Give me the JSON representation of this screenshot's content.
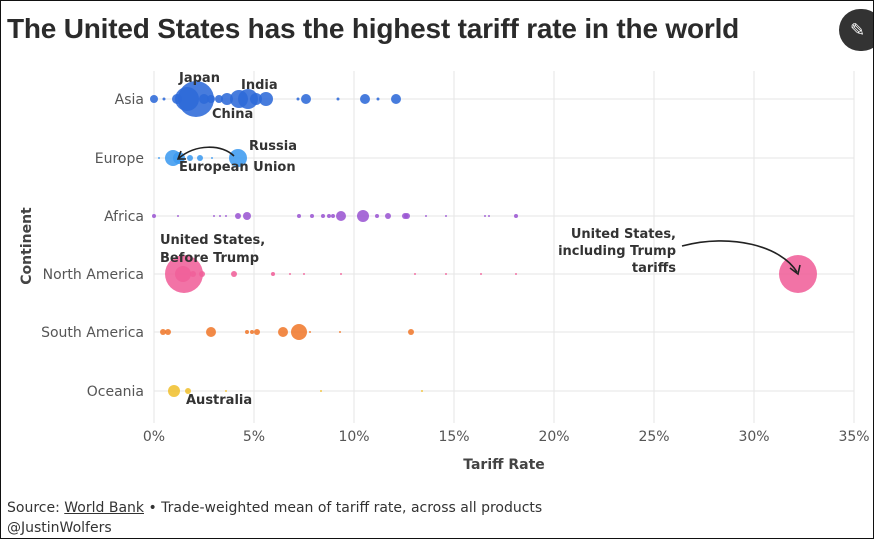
{
  "title": "The United States has the highest tariff rate in the world",
  "edit_icon": "pencil-icon",
  "footer": {
    "source_prefix": "Source:",
    "source_link": "World Bank",
    "source_note": "• Trade-weighted mean of tariff rate, across all products",
    "handle": "@JustinWolfers"
  },
  "chart_data": {
    "type": "scatter",
    "title": "The United States has the highest tariff rate in the world",
    "xlabel": "Tariff Rate",
    "ylabel": "Continent",
    "xlim": [
      0,
      35
    ],
    "xticks": [
      "0%",
      "5%",
      "10%",
      "15%",
      "20%",
      "25%",
      "30%",
      "35%"
    ],
    "categories": [
      "Asia",
      "Europe",
      "Africa",
      "North America",
      "South America",
      "Oceania"
    ],
    "grid": true,
    "point_size_note": "bubble size = relative trade weight",
    "series": [
      {
        "category": "Asia",
        "color": "#2e6ad8",
        "points": [
          [
            0.0,
            4
          ],
          [
            0.5,
            1.5
          ],
          [
            1.15,
            5
          ],
          [
            1.65,
            12
          ],
          [
            2.1,
            18
          ],
          [
            2.5,
            5
          ],
          [
            2.85,
            4
          ],
          [
            3.25,
            4
          ],
          [
            3.65,
            6
          ],
          [
            4.25,
            9
          ],
          [
            4.7,
            10
          ],
          [
            5.1,
            6
          ],
          [
            5.6,
            7
          ],
          [
            7.2,
            1.5
          ],
          [
            7.6,
            5
          ],
          [
            9.2,
            1.5
          ],
          [
            10.55,
            5
          ],
          [
            11.2,
            1.5
          ],
          [
            12.1,
            5
          ]
        ]
      },
      {
        "category": "Europe",
        "color": "#3d9bf0",
        "points": [
          [
            0.25,
            1
          ],
          [
            0.95,
            8
          ],
          [
            1.25,
            6
          ],
          [
            1.8,
            3
          ],
          [
            2.3,
            3
          ],
          [
            2.9,
            1
          ],
          [
            4.2,
            9
          ]
        ]
      },
      {
        "category": "Africa",
        "color": "#9b57d3",
        "points": [
          [
            0.0,
            2
          ],
          [
            1.2,
            1
          ],
          [
            3.0,
            1
          ],
          [
            3.3,
            1
          ],
          [
            3.6,
            1
          ],
          [
            4.2,
            3
          ],
          [
            4.65,
            4
          ],
          [
            7.25,
            2
          ],
          [
            7.9,
            2
          ],
          [
            8.45,
            2
          ],
          [
            8.75,
            2
          ],
          [
            8.95,
            2
          ],
          [
            9.35,
            5
          ],
          [
            10.45,
            6
          ],
          [
            11.15,
            2
          ],
          [
            11.7,
            3
          ],
          [
            12.55,
            3
          ],
          [
            12.65,
            3
          ],
          [
            13.6,
            1
          ],
          [
            14.6,
            1
          ],
          [
            16.55,
            1
          ],
          [
            16.75,
            1
          ],
          [
            18.1,
            2
          ]
        ]
      },
      {
        "category": "North America",
        "color": "#f0609a",
        "points": [
          [
            1.5,
            19
          ],
          [
            1.45,
            8
          ],
          [
            1.95,
            3
          ],
          [
            2.4,
            3
          ],
          [
            4.0,
            3
          ],
          [
            5.95,
            2
          ],
          [
            6.8,
            1
          ],
          [
            7.5,
            1
          ],
          [
            9.35,
            1
          ],
          [
            13.05,
            1
          ],
          [
            14.6,
            1
          ],
          [
            16.35,
            1
          ],
          [
            18.1,
            1
          ],
          [
            32.2,
            19
          ]
        ]
      },
      {
        "category": "South America",
        "color": "#f07a2e",
        "points": [
          [
            0.45,
            3
          ],
          [
            0.7,
            3
          ],
          [
            2.85,
            5
          ],
          [
            4.65,
            2
          ],
          [
            4.9,
            2
          ],
          [
            5.15,
            3
          ],
          [
            6.45,
            5
          ],
          [
            7.25,
            8
          ],
          [
            7.8,
            1
          ],
          [
            9.3,
            1
          ],
          [
            12.85,
            3
          ]
        ]
      },
      {
        "category": "Oceania",
        "color": "#f0c030",
        "points": [
          [
            1.0,
            6
          ],
          [
            1.7,
            3
          ],
          [
            3.6,
            1
          ],
          [
            8.35,
            1
          ],
          [
            13.4,
            1
          ]
        ]
      }
    ],
    "annotations": [
      {
        "id": "japan",
        "lines": [
          "Japan"
        ]
      },
      {
        "id": "india",
        "lines": [
          "India"
        ]
      },
      {
        "id": "china",
        "lines": [
          "China"
        ]
      },
      {
        "id": "russia",
        "lines": [
          "Russia"
        ]
      },
      {
        "id": "eu",
        "lines": [
          "European Union"
        ]
      },
      {
        "id": "us_before",
        "lines": [
          "United States,",
          "Before Trump"
        ]
      },
      {
        "id": "us_trump",
        "lines": [
          "United States,",
          "including Trump",
          "tariffs"
        ]
      },
      {
        "id": "australia",
        "lines": [
          "Australia"
        ]
      }
    ]
  }
}
